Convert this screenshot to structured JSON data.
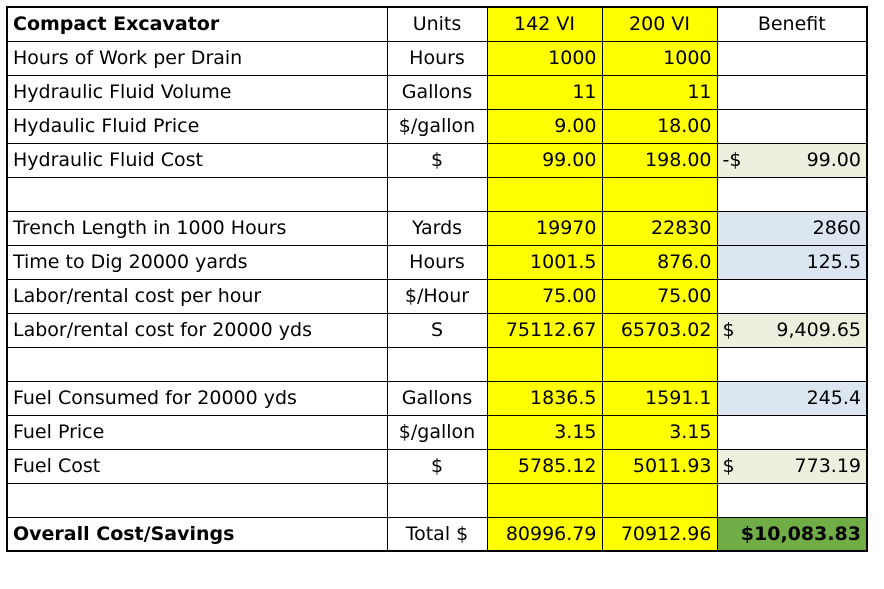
{
  "header": {
    "title": "Compact Excavator",
    "units": "Units",
    "col_a": "142 VI",
    "col_b": "200 VI",
    "benefit": "Benefit"
  },
  "rows": [
    {
      "label": "Hours of Work per Drain",
      "unit": "Hours",
      "a": "1000",
      "b": "1000",
      "benefit": "",
      "benefit_prefix": "",
      "style": ""
    },
    {
      "label": "Hydraulic Fluid Volume",
      "unit": "Gallons",
      "a": "11",
      "b": "11",
      "benefit": "",
      "benefit_prefix": "",
      "style": ""
    },
    {
      "label": "Hydaulic Fluid Price",
      "unit": "$/gallon",
      "a": "9.00",
      "b": "18.00",
      "benefit": "",
      "benefit_prefix": "",
      "style": ""
    },
    {
      "label": "Hydraulic Fluid Cost",
      "unit": "$",
      "a": "99.00",
      "b": "198.00",
      "benefit": "99.00",
      "benefit_prefix": "-$",
      "style": "green"
    },
    {
      "label": "",
      "unit": "",
      "a": "",
      "b": "",
      "benefit": "",
      "benefit_prefix": "",
      "style": ""
    },
    {
      "label": "Trench Length in 1000 Hours",
      "unit": "Yards",
      "a": "19970",
      "b": "22830",
      "benefit": "2860",
      "benefit_prefix": "",
      "style": "blue"
    },
    {
      "label": "Time to Dig 20000 yards",
      "unit": "Hours",
      "a": "1001.5",
      "b": "876.0",
      "benefit": "125.5",
      "benefit_prefix": "",
      "style": "blue"
    },
    {
      "label": "Labor/rental cost per hour",
      "unit": "$/Hour",
      "a": "75.00",
      "b": "75.00",
      "benefit": "",
      "benefit_prefix": "",
      "style": ""
    },
    {
      "label": "Labor/rental cost for 20000 yds",
      "unit": "S",
      "a": "75112.67",
      "b": "65703.02",
      "benefit": "9,409.65",
      "benefit_prefix": "$",
      "style": "green"
    },
    {
      "label": "",
      "unit": "",
      "a": "",
      "b": "",
      "benefit": "",
      "benefit_prefix": "",
      "style": ""
    },
    {
      "label": "Fuel Consumed for 20000 yds",
      "unit": "Gallons",
      "a": "1836.5",
      "b": "1591.1",
      "benefit": "245.4",
      "benefit_prefix": "",
      "style": "blue"
    },
    {
      "label": "Fuel Price",
      "unit": "$/gallon",
      "a": "3.15",
      "b": "3.15",
      "benefit": "",
      "benefit_prefix": "",
      "style": ""
    },
    {
      "label": "Fuel Cost",
      "unit": "$",
      "a": "5785.12",
      "b": "5011.93",
      "benefit": "773.19",
      "benefit_prefix": "$",
      "style": "green"
    },
    {
      "label": "",
      "unit": "",
      "a": "",
      "b": "",
      "benefit": "",
      "benefit_prefix": "",
      "style": ""
    }
  ],
  "total": {
    "label": "Overall Cost/Savings",
    "unit": "Total $",
    "a": "80996.79",
    "b": "70912.96",
    "benefit": "$10,083.83"
  }
}
